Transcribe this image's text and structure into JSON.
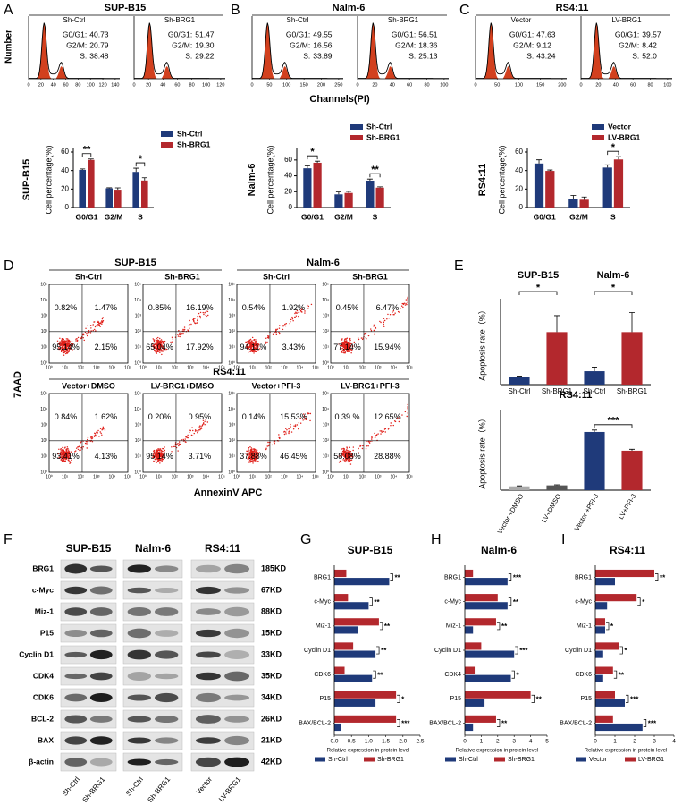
{
  "panel_labels": [
    "A",
    "B",
    "C",
    "D",
    "E",
    "F",
    "G",
    "H",
    "I"
  ],
  "cell_cycle": {
    "x_label": "Channels(PI)",
    "y_label": "Number",
    "groups": [
      {
        "title": "SUP-B15",
        "plots": [
          {
            "name": "Sh-Ctrl",
            "stats": [
              {
                "label": "G0/G1:",
                "value": "40.73"
              },
              {
                "label": "G2/M:",
                "value": "20.79"
              },
              {
                "label": "S:",
                "value": "38.48"
              }
            ],
            "xticks": [
              0,
              20,
              40,
              60,
              80,
              100,
              120,
              140
            ]
          },
          {
            "name": "Sh-BRG1",
            "stats": [
              {
                "label": "G0/G1:",
                "value": "51.47"
              },
              {
                "label": "G2/M:",
                "value": "19.30"
              },
              {
                "label": "S:",
                "value": "29.22"
              }
            ],
            "xticks": [
              0,
              20,
              40,
              60,
              80,
              100,
              120
            ]
          }
        ]
      },
      {
        "title": "Nalm-6",
        "plots": [
          {
            "name": "Sh-Ctrl",
            "stats": [
              {
                "label": "G0/G1:",
                "value": "49.55"
              },
              {
                "label": "G2/M:",
                "value": "16.56"
              },
              {
                "label": "S:",
                "value": "33.89"
              }
            ],
            "xticks": [
              0,
              50,
              100,
              150,
              200,
              250
            ]
          },
          {
            "name": "Sh-BRG1",
            "stats": [
              {
                "label": "G0/G1:",
                "value": "56.51"
              },
              {
                "label": "G2/M:",
                "value": "18.36"
              },
              {
                "label": "S:",
                "value": "25.13"
              }
            ],
            "xticks": [
              0,
              20,
              40,
              60,
              80,
              100
            ]
          }
        ]
      },
      {
        "title": "RS4:11",
        "plots": [
          {
            "name": "Vector",
            "stats": [
              {
                "label": "G0/G1:",
                "value": "47.63"
              },
              {
                "label": "G2/M:",
                "value": "9.12"
              },
              {
                "label": "S:",
                "value": "43.24"
              }
            ],
            "xticks": [
              0,
              50,
              100,
              150,
              200
            ]
          },
          {
            "name": "LV-BRG1",
            "stats": [
              {
                "label": "G0/G1:",
                "value": "39.57"
              },
              {
                "label": "G2/M:",
                "value": "8.42"
              },
              {
                "label": "S:",
                "value": "52.0"
              }
            ],
            "xticks": [
              0,
              20,
              40,
              60,
              80,
              100
            ]
          }
        ]
      }
    ]
  },
  "apoptosis_flow": {
    "x_label": "AnnexinV APC",
    "y_label": "7AAD",
    "ticks": [
      "10⁰",
      "10¹",
      "10²",
      "10³",
      "10⁴",
      "10⁵"
    ],
    "groups": [
      {
        "title": "SUP-B15",
        "plots": [
          {
            "name": "Sh-Ctrl",
            "quadrants": [
              "0.82%",
              "1.47%",
              "95.14%",
              "2.15%"
            ]
          },
          {
            "name": "Sh-BRG1",
            "quadrants": [
              "0.85%",
              "16.19%",
              "65.04%",
              "17.92%"
            ]
          }
        ]
      },
      {
        "title": "Nalm-6",
        "plots": [
          {
            "name": "Sh-Ctrl",
            "quadrants": [
              "0.54%",
              "1.92%",
              "94.11%",
              "3.43%"
            ]
          },
          {
            "name": "Sh-BRG1",
            "quadrants": [
              "0.45%",
              "6.47%",
              "77.14%",
              "15.94%"
            ]
          }
        ]
      },
      {
        "title": "RS4:11",
        "plots": [
          {
            "name": "Vector+DMSO",
            "quadrants": [
              "0.84%",
              "1.62%",
              "93.41%",
              "4.13%"
            ]
          },
          {
            "name": "LV-BRG1+DMSO",
            "quadrants": [
              "0.20%",
              "0.95%",
              "95.14%",
              "3.71%"
            ]
          },
          {
            "name": "Vector+PFI-3",
            "quadrants": [
              "0.14%",
              "15.53%",
              "37.88%",
              "46.45%"
            ]
          },
          {
            "name": "LV-BRG1+PFI-3",
            "quadrants": [
              "0.39 %",
              "12.65%",
              "58.08%",
              "28.88%"
            ]
          }
        ]
      }
    ]
  },
  "western_blot": {
    "groups": [
      "SUP-B15",
      "Nalm-6",
      "RS4:11"
    ],
    "proteins": [
      "BRG1",
      "c-Myc",
      "Miz-1",
      "P15",
      "Cyclin D1",
      "CDK4",
      "CDK6",
      "BCL-2",
      "BAX",
      "β-actin"
    ],
    "sizes": [
      "185KD",
      "67KD",
      "88KD",
      "15KD",
      "33KD",
      "35KD",
      "34KD",
      "26KD",
      "21KD",
      "42KD"
    ],
    "lanes": [
      "Sh-Ctrl",
      "Sh-BRG1",
      "Sh-Ctrl",
      "Sh-BRG1",
      "Vector",
      "LV-BRG1"
    ]
  },
  "chart_data": [
    {
      "type": "bar",
      "title": "SUP-B15",
      "ylabel": "Cell percentage(%)",
      "categories": [
        "G0/G1",
        "G2/M",
        "S"
      ],
      "series": [
        {
          "name": "Sh-Ctrl",
          "color": "#1f3a7a",
          "values": [
            40.7,
            20.8,
            38.5
          ],
          "errors": [
            1,
            0.6,
            4
          ]
        },
        {
          "name": "Sh-BRG1",
          "color": "#b3282d",
          "values": [
            51.5,
            19.3,
            29.2
          ],
          "errors": [
            1,
            2,
            3
          ]
        }
      ],
      "significance": [
        "**",
        null,
        "*"
      ],
      "ylim": [
        0,
        60
      ],
      "yticks": [
        0,
        20,
        40,
        60
      ]
    },
    {
      "type": "bar",
      "title": "Nalm-6",
      "ylabel": "Cell percentage(%)",
      "categories": [
        "G0/G1",
        "G2/M",
        "S"
      ],
      "series": [
        {
          "name": "Sh-Ctrl",
          "color": "#1f3a7a",
          "values": [
            49.5,
            16.6,
            33.9
          ],
          "errors": [
            3,
            3,
            2
          ]
        },
        {
          "name": "Sh-BRG1",
          "color": "#b3282d",
          "values": [
            56.5,
            18.4,
            25.1
          ],
          "errors": [
            2,
            2,
            1
          ]
        }
      ],
      "significance": [
        "*",
        null,
        "**"
      ],
      "ylim": [
        0,
        70
      ],
      "yticks": [
        0,
        20,
        40,
        60
      ]
    },
    {
      "type": "bar",
      "title": "RS4:11",
      "ylabel": "Cell percentage(%)",
      "categories": [
        "G0/G1",
        "G2/M",
        "S"
      ],
      "series": [
        {
          "name": "Vector",
          "color": "#1f3a7a",
          "values": [
            47.6,
            9.1,
            43.2
          ],
          "errors": [
            4,
            4,
            3
          ]
        },
        {
          "name": "LV-BRG1",
          "color": "#b3282d",
          "values": [
            39.6,
            8.4,
            52
          ],
          "errors": [
            1,
            3,
            3
          ]
        }
      ],
      "significance": [
        null,
        null,
        "*"
      ],
      "ylim": [
        0,
        60
      ],
      "yticks": [
        0,
        20,
        40,
        60
      ]
    },
    {
      "type": "bar",
      "ylabel": "Apoptosis rate（%）",
      "groups": [
        "SUP-B15",
        "Nalm-6"
      ],
      "categories": [
        "Sh-Ctrl",
        "Sh-BRG1",
        "Sh-Ctrl",
        "Sh-BRG1"
      ],
      "values": [
        3.5,
        25.5,
        6.5,
        25.5
      ],
      "errors": [
        0.6,
        8,
        2,
        9.5
      ],
      "colors": [
        "#1f3a7a",
        "#b3282d",
        "#1f3a7a",
        "#b3282d"
      ],
      "significance": [
        "*",
        "*"
      ],
      "ylim": [
        0,
        40
      ]
    },
    {
      "type": "bar",
      "title": "RS4:11",
      "ylabel": "Apoptosis rate（%）",
      "categories": [
        "Vector +DMSO",
        "LV+DMSO",
        "Vector +PFI-3",
        "LV+PFI-3"
      ],
      "values": [
        4,
        5,
        60.5,
        41
      ],
      "errors": [
        0.5,
        0.6,
        2,
        1.5
      ],
      "colors": [
        "#aaaaaa",
        "#555555",
        "#1f3a7a",
        "#b3282d"
      ],
      "significance": [
        null,
        "***"
      ],
      "ylim": [
        0,
        80
      ]
    },
    {
      "type": "hbar",
      "title": "SUP-B15",
      "xlabel": "Relative expression in protein level",
      "categories": [
        "BRG1",
        "c-Myc",
        "Miz-1",
        "Cyclin D1",
        "CDK6",
        "P15",
        "BAX/BCL-2"
      ],
      "series": [
        {
          "name": "Sh-Ctrl",
          "color": "#1f3a7a",
          "values": [
            1.6,
            1.0,
            0.7,
            1.2,
            1.1,
            1.2,
            0.2
          ]
        },
        {
          "name": "Sh-BRG1",
          "color": "#b3282d",
          "values": [
            0.35,
            0.4,
            1.3,
            0.55,
            0.3,
            1.8,
            1.8
          ]
        }
      ],
      "significance": [
        "**",
        "**",
        "**",
        "**",
        "**",
        "*",
        "***"
      ],
      "xlim": [
        0,
        2.5
      ],
      "xticks": [
        {
          "value": 0,
          "label": "0.0"
        },
        0.5,
        {
          "value": 1,
          "label": "1.0"
        },
        1.5,
        {
          "value": 2,
          "label": "2.0"
        },
        2.5
      ]
    },
    {
      "type": "hbar",
      "title": "Nalm-6",
      "xlabel": "Relative expression in protein level",
      "categories": [
        "BRG1",
        "c-Myc",
        "Miz-1",
        "Cyclin D1",
        "CDK4",
        "P15",
        "BAX/BCL-2"
      ],
      "series": [
        {
          "name": "Sh-Ctrl",
          "color": "#1f3a7a",
          "values": [
            2.6,
            2.6,
            0.5,
            3.0,
            2.8,
            1.2,
            0.5
          ]
        },
        {
          "name": "Sh-BRG1",
          "color": "#b3282d",
          "values": [
            0.5,
            2.0,
            1.9,
            1.0,
            0.6,
            4.0,
            1.9
          ]
        }
      ],
      "significance": [
        "***",
        "**",
        "**",
        "***",
        "*",
        "**",
        "**"
      ],
      "xlim": [
        0,
        5
      ],
      "xticks": [
        0,
        1,
        2,
        3,
        4,
        5
      ]
    },
    {
      "type": "hbar",
      "title": "RS4:11",
      "xlabel": "Relative expression in protein level",
      "categories": [
        "BRG1",
        "c-Myc",
        "Miz-1",
        "Cyclin D1",
        "CDK6",
        "P15",
        "BAX/BCL-2"
      ],
      "series": [
        {
          "name": "Vector",
          "color": "#1f3a7a",
          "values": [
            1.0,
            0.6,
            0.5,
            0.4,
            0.4,
            1.5,
            2.4
          ]
        },
        {
          "name": "LV-BRG1",
          "color": "#b3282d",
          "values": [
            3.0,
            2.1,
            0.5,
            1.2,
            0.9,
            1.0,
            0.9
          ]
        }
      ],
      "significance": [
        "**",
        "*",
        "*",
        "*",
        "**",
        "***",
        "***"
      ],
      "xlim": [
        0,
        4
      ],
      "xticks": [
        0,
        1,
        2,
        3,
        4
      ]
    }
  ]
}
